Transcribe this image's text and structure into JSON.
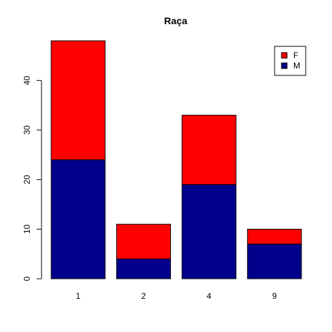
{
  "chart_data": {
    "type": "bar",
    "stacked": true,
    "title": "Raça",
    "xlabel": "",
    "ylabel": "",
    "categories": [
      "1",
      "2",
      "4",
      "9"
    ],
    "series": [
      {
        "name": "M",
        "color": "#00008B",
        "values": [
          24,
          4,
          19,
          7
        ]
      },
      {
        "name": "F",
        "color": "#FF0000",
        "values": [
          24,
          7,
          14,
          3
        ]
      }
    ],
    "ylim": [
      0,
      48
    ],
    "yticks": [
      0,
      10,
      20,
      30,
      40
    ],
    "grid": false,
    "legend": {
      "position": "top-right",
      "entries": [
        {
          "name": "F",
          "color": "#FF0000"
        },
        {
          "name": "M",
          "color": "#00008B"
        }
      ]
    }
  }
}
